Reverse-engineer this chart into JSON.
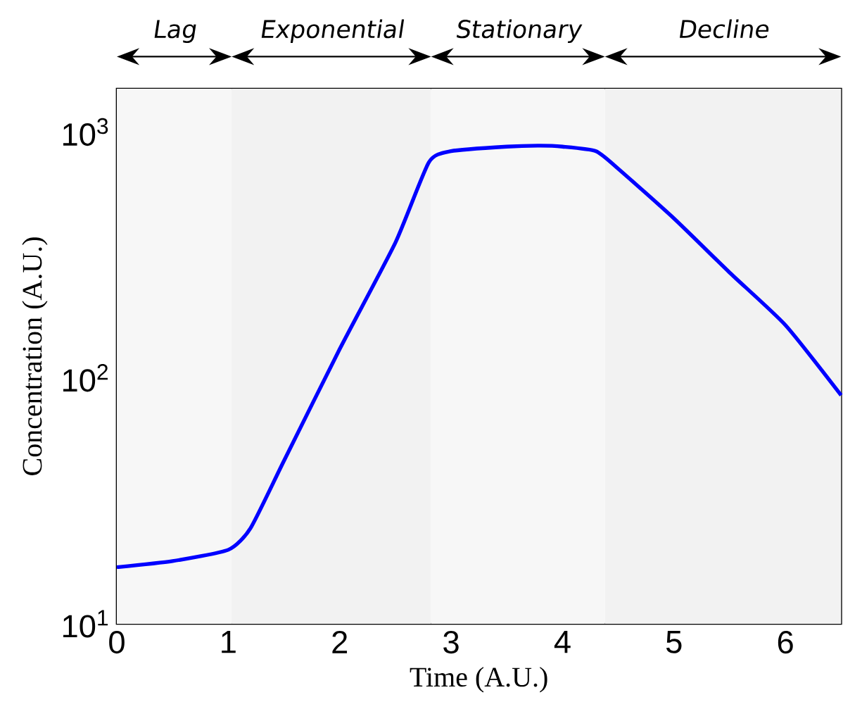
{
  "chart_data": {
    "type": "line",
    "xlabel": "Time (A.U.)",
    "ylabel": "Concentration (A.U.)",
    "log": "y",
    "grid": false,
    "marker": "none",
    "line_style": "solid",
    "xlim": [
      0,
      6.5
    ],
    "xticks": [
      0,
      1,
      2,
      3,
      4,
      5,
      6
    ],
    "ylim": [
      10,
      1500
    ],
    "yticks": [
      {
        "value": 10,
        "label": "10$^{1}$"
      },
      {
        "value": 100,
        "label": "10$^{2}$"
      },
      {
        "value": 1000,
        "label": "10$^{3}$"
      }
    ],
    "x": [
      0,
      0.5,
      1.0,
      1.2,
      1.5,
      2.0,
      2.5,
      2.8,
      3.0,
      3.5,
      3.8,
      4.0,
      4.3,
      4.5,
      5.0,
      5.5,
      6.0,
      6.5
    ],
    "series": [
      {
        "color": "#0000ff",
        "values": [
          17,
          18,
          20,
          24.5,
          46,
          131,
          355,
          753,
          836,
          872,
          880,
          872,
          836,
          709,
          445,
          268,
          164,
          85
        ]
      }
    ],
    "bands": [
      {
        "axis": "x",
        "from": 0,
        "to": 1.03,
        "label": "Lag"
      },
      {
        "axis": "x",
        "from": 1.03,
        "to": 2.82,
        "label": "Exponential"
      },
      {
        "axis": "x",
        "from": 2.82,
        "to": 4.38,
        "label": "Stationary"
      },
      {
        "axis": "x",
        "from": 4.38,
        "to": 6.5,
        "label": "Decline"
      }
    ]
  }
}
